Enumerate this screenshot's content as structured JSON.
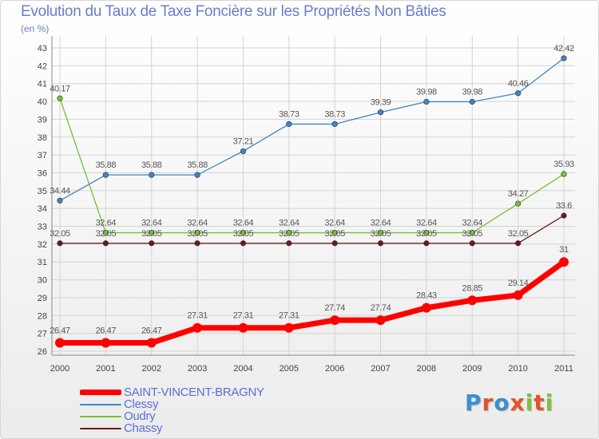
{
  "title": "Evolution du Taux de Taxe Foncière sur les Propriétés Non Bâties",
  "unit_label": "(en %)",
  "logo": {
    "letters": [
      "P",
      "r",
      "o",
      "x",
      "i",
      "t",
      "i"
    ],
    "colors": [
      "#3a8fd1",
      "#e0552a",
      "#3a8fd1",
      "#e0552a",
      "#7cc242",
      "#e0552a",
      "#7cc242"
    ]
  },
  "chart_data": {
    "type": "line",
    "title": "Evolution du Taux de Taxe Foncière sur les Propriétés Non Bâties",
    "ylabel": "(en %)",
    "xlabel": "",
    "ylim": [
      26,
      43
    ],
    "yticks": [
      26,
      27,
      28,
      29,
      30,
      31,
      32,
      33,
      34,
      35,
      36,
      37,
      38,
      39,
      40,
      41,
      42,
      43
    ],
    "x": [
      "2000",
      "2001",
      "2002",
      "2003",
      "2004",
      "2005",
      "2006",
      "2007",
      "2008",
      "2009",
      "2010",
      "2011"
    ],
    "grid": true,
    "legend_position": "bottom-left",
    "series": [
      {
        "name": "SAINT-VINCENT-BRAGNY",
        "color": "#ff0000",
        "emphasis": true,
        "values": [
          26.47,
          26.47,
          26.47,
          27.31,
          27.31,
          27.31,
          27.74,
          27.74,
          28.43,
          28.85,
          29.14,
          31
        ],
        "labels": [
          "26.47",
          "26.47",
          "26.47",
          "27.31",
          "27.31",
          "27.31",
          "27.74",
          "27.74",
          "28.43",
          "28.85",
          "29.14",
          "31"
        ]
      },
      {
        "name": "Clessy",
        "color": "#3d85c6",
        "emphasis": false,
        "values": [
          34.44,
          35.88,
          35.88,
          35.88,
          37.21,
          38.73,
          38.73,
          39.39,
          39.98,
          39.98,
          40.46,
          42.42
        ],
        "labels": [
          "34.44",
          "35.88",
          "35.88",
          "35.88",
          "37.21",
          "38.73",
          "38.73",
          "39.39",
          "39.98",
          "39.98",
          "40.46",
          "42.42"
        ]
      },
      {
        "name": "Oudry",
        "color": "#72c234",
        "emphasis": false,
        "values": [
          40.17,
          32.64,
          32.64,
          32.64,
          32.64,
          32.64,
          32.64,
          32.64,
          32.64,
          32.64,
          34.27,
          35.93
        ],
        "labels": [
          "40.17",
          "32.64",
          "32.64",
          "32.64",
          "32.64",
          "32.64",
          "32.64",
          "32.64",
          "32.64",
          "32.64",
          "34.27",
          "35.93"
        ]
      },
      {
        "name": "Chassy",
        "color": "#6b1a1a",
        "emphasis": false,
        "values": [
          32.05,
          32.05,
          32.05,
          32.05,
          32.05,
          32.05,
          32.05,
          32.05,
          32.05,
          32.05,
          32.05,
          33.6
        ],
        "labels": [
          "32.05",
          "32.05",
          "32.05",
          "32.05",
          "32.05",
          "32.05",
          "32.05",
          "32.05",
          "32.05",
          "32.05",
          "32.05",
          "33.6"
        ]
      }
    ]
  }
}
